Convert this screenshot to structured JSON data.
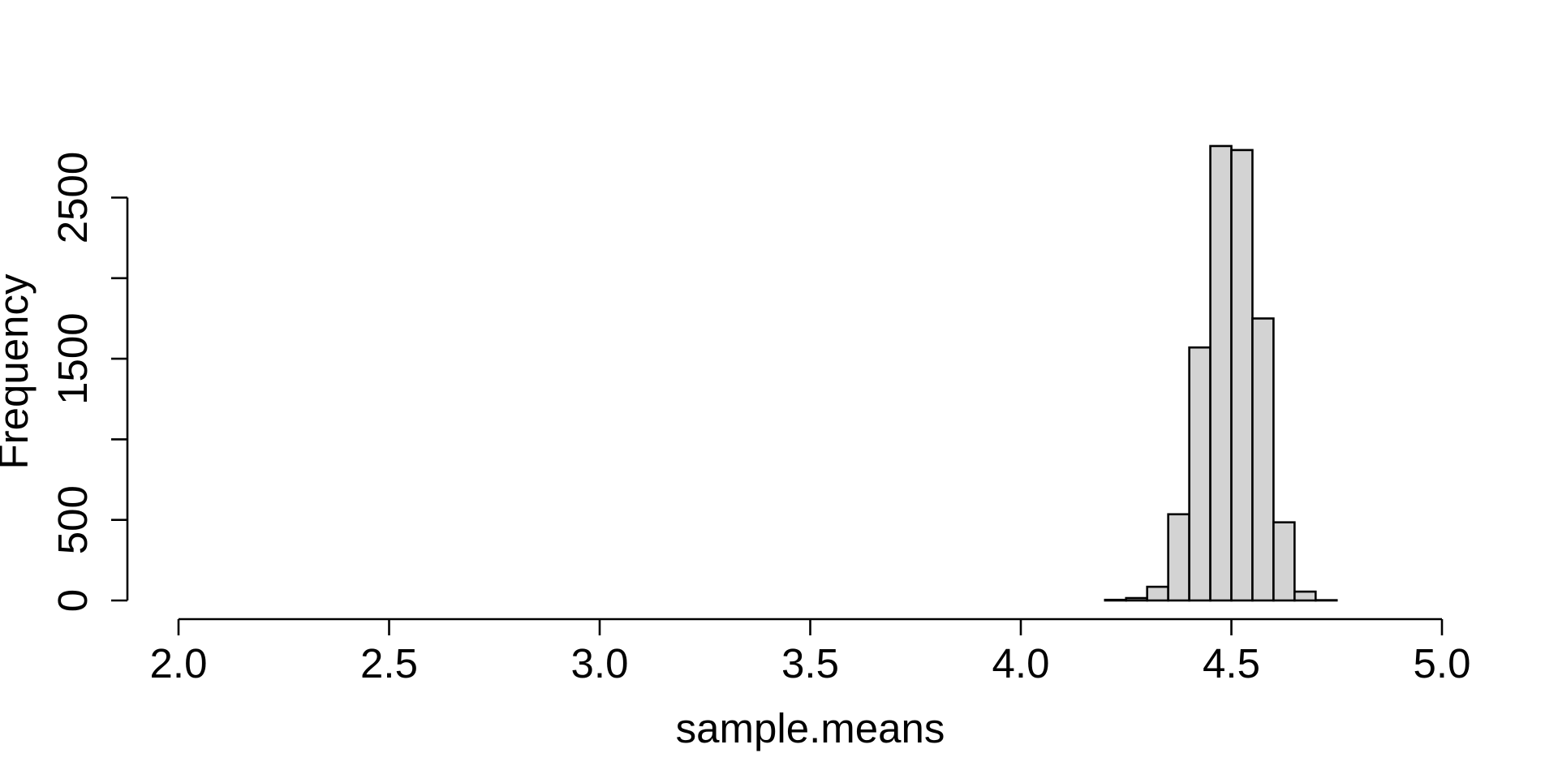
{
  "figure": {
    "background": "#ffffff",
    "bar_fill": "#d3d3d3",
    "bar_stroke": "#000000",
    "axis_color": "#000000",
    "text_color": "#000000"
  },
  "chart_data": {
    "type": "bar",
    "subtype": "histogram",
    "title": "",
    "xlabel": "sample.means",
    "ylabel": "Frequency",
    "xlim": [
      2.0,
      5.0
    ],
    "ylim": [
      0,
      2500
    ],
    "grid": false,
    "legend": null,
    "bin_width": 0.05,
    "x_ticks": [
      {
        "value": 2.0,
        "label": "2.0"
      },
      {
        "value": 2.5,
        "label": "2.5"
      },
      {
        "value": 3.0,
        "label": "3.0"
      },
      {
        "value": 3.5,
        "label": "3.5"
      },
      {
        "value": 4.0,
        "label": "4.0"
      },
      {
        "value": 4.5,
        "label": "4.5"
      },
      {
        "value": 5.0,
        "label": "5.0"
      }
    ],
    "y_ticks": [
      {
        "value": 0,
        "label": "0"
      },
      {
        "value": 500,
        "label": "500"
      },
      {
        "value": 1000,
        "label": ""
      },
      {
        "value": 1500,
        "label": "1500"
      },
      {
        "value": 2000,
        "label": ""
      },
      {
        "value": 2500,
        "label": "2500"
      }
    ],
    "bins": [
      {
        "x0": 4.2,
        "x1": 4.25,
        "count": 4
      },
      {
        "x0": 4.25,
        "x1": 4.3,
        "count": 15
      },
      {
        "x0": 4.3,
        "x1": 4.35,
        "count": 85
      },
      {
        "x0": 4.35,
        "x1": 4.4,
        "count": 535
      },
      {
        "x0": 4.4,
        "x1": 4.45,
        "count": 1570
      },
      {
        "x0": 4.45,
        "x1": 4.5,
        "count": 2820
      },
      {
        "x0": 4.5,
        "x1": 4.55,
        "count": 2795
      },
      {
        "x0": 4.55,
        "x1": 4.6,
        "count": 1750
      },
      {
        "x0": 4.6,
        "x1": 4.65,
        "count": 485
      },
      {
        "x0": 4.65,
        "x1": 4.7,
        "count": 55
      },
      {
        "x0": 4.7,
        "x1": 4.75,
        "count": 2
      }
    ]
  }
}
